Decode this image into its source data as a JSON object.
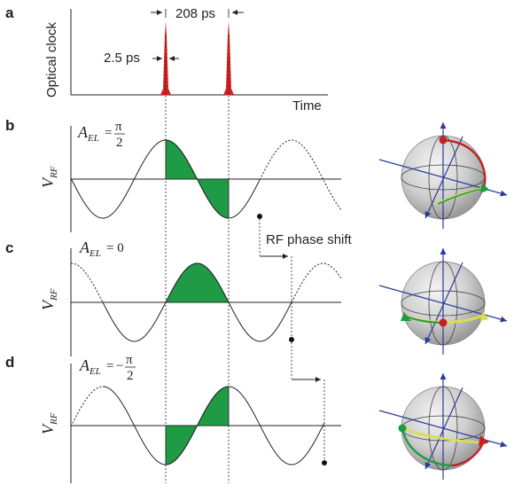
{
  "panels": {
    "a": {
      "letter": "a",
      "ylabel": "Optical clock",
      "xlabel": "Time",
      "period_label": "208 ps",
      "width_label": "2.5 ps"
    },
    "b": {
      "letter": "b",
      "vlabel": "V",
      "vsub": "RF",
      "ael": "A",
      "ael_sub": "EL",
      "ael_value": "= π/2",
      "ael_num": "π",
      "ael_den": "2",
      "phase_rad": 1.5708
    },
    "c": {
      "letter": "c",
      "vlabel": "V",
      "vsub": "RF",
      "ael": "A",
      "ael_sub": "EL",
      "ael_value": "= 0",
      "shift_label": "RF phase shift",
      "phase_rad": 0
    },
    "d": {
      "letter": "d",
      "vlabel": "V",
      "vsub": "RF",
      "ael": "A",
      "ael_sub": "EL",
      "ael_value": "= −π/2",
      "ael_minus": "−",
      "ael_num": "π",
      "ael_den": "2",
      "phase_rad": -1.5708
    }
  },
  "colors": {
    "pulse": "#d42020",
    "fill": "#1f9a45",
    "sphere": "#c9c9c9",
    "axis_blue": "#2a3a9c",
    "arc_red": "#c42222",
    "arc_green": "#1f9a45",
    "arc_yellow": "#d9e04a"
  },
  "icons": [
    "bloch-sphere-b",
    "bloch-sphere-c",
    "bloch-sphere-d"
  ]
}
